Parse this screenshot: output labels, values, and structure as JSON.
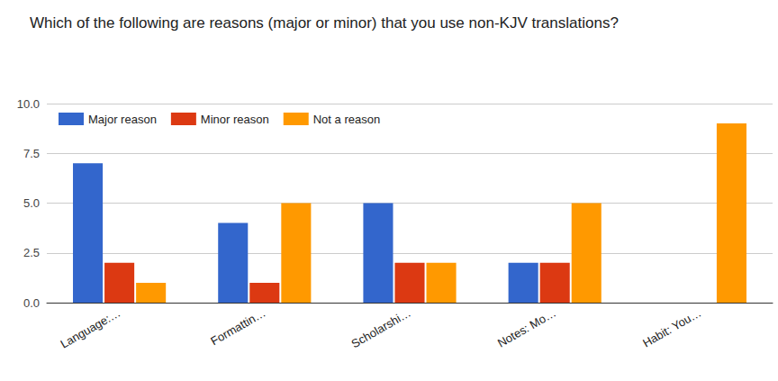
{
  "chart_data": {
    "type": "bar",
    "title": "Which of the following are reasons (major or minor) that you use non-KJV translations?",
    "categories": [
      "Language:…",
      "Formattin…",
      "Scholarshi…",
      "Notes: Mo…",
      "Habit: You…"
    ],
    "series": [
      {
        "name": "Major reason",
        "color": "#3366cc",
        "values": [
          7,
          4,
          5,
          2,
          0
        ]
      },
      {
        "name": "Minor reason",
        "color": "#dc3912",
        "values": [
          2,
          1,
          2,
          2,
          0
        ]
      },
      {
        "name": "Not a reason",
        "color": "#ff9900",
        "values": [
          1,
          5,
          2,
          5,
          9
        ]
      }
    ],
    "ylim": [
      0,
      10
    ],
    "yticks": [
      {
        "value": 0,
        "label": "0.0"
      },
      2.5,
      {
        "value": 5,
        "label": "5.0"
      },
      7.5,
      {
        "value": 10,
        "label": "10.0"
      }
    ],
    "grid": true,
    "legend": "top-left"
  }
}
